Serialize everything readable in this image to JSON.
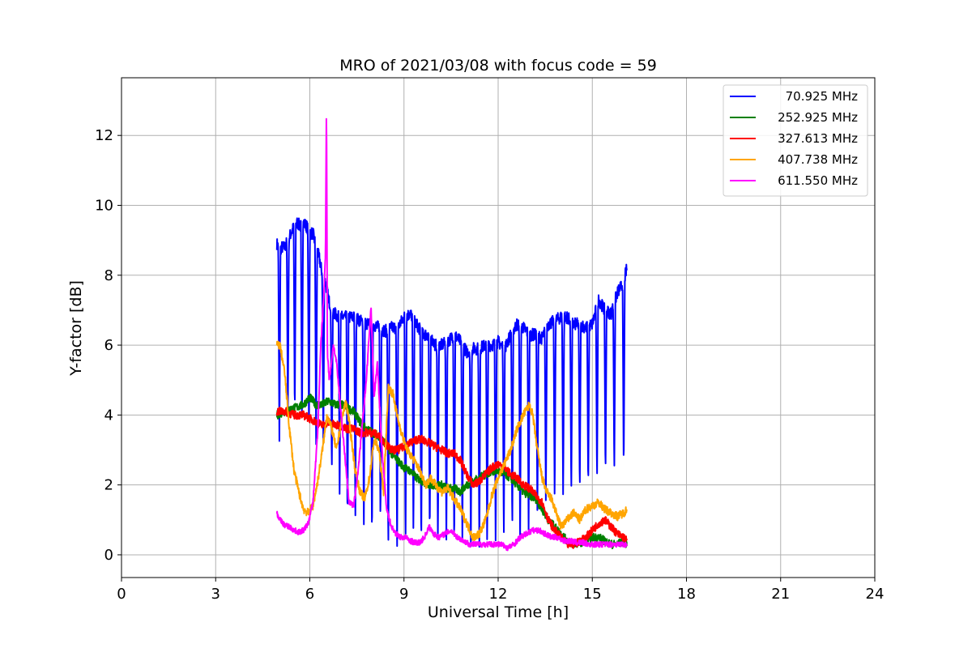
{
  "chart_data": {
    "type": "line",
    "title": "MRO of 2021/03/08 with focus code = 59",
    "xlabel": "Universal Time [h]",
    "ylabel": "Y-factor [dB]",
    "xlim": [
      0,
      24
    ],
    "ylim": [
      -0.65,
      13.65
    ],
    "xticks": [
      0,
      3,
      6,
      9,
      12,
      15,
      18,
      21,
      24
    ],
    "yticks": [
      0,
      2,
      4,
      6,
      8,
      10,
      12
    ],
    "grid": true,
    "legend_position": "top-right",
    "series": [
      {
        "name": "70.925 MHz",
        "color": "#0000ff",
        "x": [
          4.95,
          5.05,
          5.1,
          5.2,
          5.3,
          5.4,
          5.5,
          5.6,
          5.7,
          5.8,
          5.9,
          6.0,
          6.1,
          6.2,
          6.3,
          6.4,
          6.5,
          6.6,
          6.7,
          6.8,
          6.9,
          7.0,
          7.2,
          7.4,
          7.6,
          7.8,
          8.0,
          8.2,
          8.4,
          8.6,
          8.8,
          9.0,
          9.2,
          9.4,
          9.6,
          9.8,
          10.0,
          10.2,
          10.4,
          10.6,
          10.8,
          11.0,
          11.2,
          11.4,
          11.6,
          11.8,
          12.0,
          12.2,
          12.4,
          12.6,
          12.8,
          13.0,
          13.2,
          13.4,
          13.6,
          13.8,
          14.0,
          14.2,
          14.4,
          14.6,
          14.8,
          15.0,
          15.2,
          15.4,
          15.6,
          15.8,
          16.0,
          16.1
        ],
        "values": [
          8.9,
          8.7,
          8.8,
          8.8,
          9.0,
          9.2,
          9.4,
          9.5,
          9.4,
          9.5,
          9.4,
          9.2,
          9.2,
          8.8,
          8.5,
          8.0,
          7.8,
          7.3,
          7.0,
          6.9,
          6.8,
          6.8,
          6.8,
          6.8,
          6.7,
          6.6,
          6.6,
          6.5,
          6.4,
          6.5,
          6.5,
          6.8,
          6.9,
          6.6,
          6.3,
          6.3,
          6.0,
          6.0,
          6.1,
          6.3,
          6.1,
          5.8,
          5.9,
          5.9,
          6.0,
          6.0,
          6.1,
          5.9,
          6.3,
          6.6,
          6.5,
          6.3,
          6.3,
          6.2,
          6.6,
          6.7,
          6.8,
          6.8,
          6.6,
          6.6,
          6.5,
          6.6,
          7.3,
          7.0,
          6.9,
          7.5,
          7.8,
          8.2
        ],
        "dips": [
          [
            5.03,
            3.2
          ],
          [
            5.3,
            4.0
          ],
          [
            5.52,
            3.9
          ],
          [
            5.75,
            3.5
          ],
          [
            5.97,
            3.8
          ],
          [
            6.2,
            3.1
          ],
          [
            6.43,
            3.0
          ],
          [
            6.7,
            2.3
          ],
          [
            6.95,
            1.6
          ],
          [
            7.2,
            0.8
          ],
          [
            7.45,
            1.0
          ],
          [
            7.72,
            0.6
          ],
          [
            7.98,
            0.3
          ],
          [
            8.25,
            0.8
          ],
          [
            8.5,
            0.05
          ],
          [
            8.78,
            0.1
          ],
          [
            9.05,
            0.3
          ],
          [
            9.3,
            0.5
          ],
          [
            9.55,
            0.1
          ],
          [
            9.82,
            0.4
          ],
          [
            10.08,
            0.3
          ],
          [
            10.35,
            0.4
          ],
          [
            10.6,
            0.05
          ],
          [
            10.86,
            0.3
          ],
          [
            11.13,
            0.2
          ],
          [
            11.4,
            0.05
          ],
          [
            11.65,
            0.1
          ],
          [
            11.92,
            0.2
          ],
          [
            12.18,
            0.4
          ],
          [
            12.45,
            0.6
          ],
          [
            12.7,
            0.3
          ],
          [
            12.97,
            0.7
          ],
          [
            13.25,
            1.1
          ],
          [
            13.52,
            1.5
          ],
          [
            13.8,
            1.5
          ],
          [
            14.07,
            1.6
          ],
          [
            14.33,
            1.7
          ],
          [
            14.6,
            1.7
          ],
          [
            14.87,
            1.8
          ],
          [
            15.15,
            2.0
          ],
          [
            15.42,
            2.2
          ],
          [
            15.7,
            2.3
          ],
          [
            16.0,
            2.3
          ]
        ]
      },
      {
        "name": "252.925 MHz",
        "color": "#008000",
        "x": [
          4.95,
          5.2,
          5.5,
          5.8,
          6.0,
          6.2,
          6.4,
          6.6,
          6.8,
          7.0,
          7.2,
          7.4,
          7.6,
          7.8,
          8.0,
          8.2,
          8.4,
          8.6,
          8.8,
          9.0,
          9.2,
          9.4,
          9.6,
          9.8,
          10.0,
          10.2,
          10.4,
          10.6,
          10.8,
          11.0,
          11.2,
          11.4,
          11.6,
          11.8,
          12.0,
          12.2,
          12.4,
          12.6,
          12.8,
          13.0,
          13.2,
          13.4,
          13.6,
          13.8,
          14.0,
          14.2,
          14.4,
          14.6,
          14.8,
          15.0,
          15.2,
          15.4,
          15.6,
          15.8,
          16.0,
          16.1
        ],
        "values": [
          4.0,
          4.1,
          4.2,
          4.3,
          4.5,
          4.3,
          4.3,
          4.4,
          4.3,
          4.3,
          4.2,
          4.1,
          3.8,
          3.6,
          3.5,
          3.4,
          3.2,
          2.9,
          2.7,
          2.5,
          2.4,
          2.2,
          2.1,
          2.0,
          2.0,
          2.0,
          1.9,
          1.9,
          1.8,
          2.0,
          2.1,
          2.2,
          2.3,
          2.4,
          2.4,
          2.3,
          2.2,
          2.0,
          1.8,
          1.7,
          1.6,
          1.3,
          1.0,
          0.8,
          0.6,
          0.4,
          0.3,
          0.35,
          0.4,
          0.5,
          0.5,
          0.4,
          0.3,
          0.3,
          0.4,
          0.3
        ]
      },
      {
        "name": "327.613 MHz",
        "color": "#ff0000",
        "x": [
          4.95,
          5.2,
          5.5,
          5.8,
          6.0,
          6.2,
          6.4,
          6.6,
          6.8,
          7.0,
          7.2,
          7.4,
          7.6,
          7.8,
          8.0,
          8.2,
          8.4,
          8.6,
          8.8,
          9.0,
          9.2,
          9.4,
          9.6,
          9.8,
          10.0,
          10.2,
          10.4,
          10.6,
          10.8,
          11.0,
          11.2,
          11.4,
          11.6,
          11.8,
          12.0,
          12.2,
          12.4,
          12.6,
          12.8,
          13.0,
          13.2,
          13.4,
          13.6,
          13.8,
          14.0,
          14.2,
          14.4,
          14.6,
          14.8,
          15.0,
          15.2,
          15.4,
          15.6,
          15.8,
          16.0,
          16.1
        ],
        "values": [
          4.1,
          4.1,
          4.0,
          4.0,
          3.9,
          3.8,
          3.7,
          3.8,
          3.7,
          3.7,
          3.6,
          3.6,
          3.5,
          3.5,
          3.5,
          3.4,
          3.2,
          3.0,
          3.0,
          3.1,
          3.2,
          3.3,
          3.3,
          3.2,
          3.1,
          3.0,
          2.9,
          2.9,
          2.7,
          2.3,
          2.0,
          2.1,
          2.3,
          2.5,
          2.6,
          2.5,
          2.3,
          2.2,
          2.0,
          1.9,
          1.7,
          1.5,
          1.0,
          0.7,
          0.5,
          0.3,
          0.3,
          0.4,
          0.5,
          0.7,
          0.9,
          1.0,
          0.8,
          0.6,
          0.5,
          0.4
        ]
      },
      {
        "name": "407.738 MHz",
        "color": "#ffa500",
        "x": [
          4.95,
          5.05,
          5.2,
          5.35,
          5.5,
          5.65,
          5.8,
          5.95,
          6.1,
          6.25,
          6.4,
          6.55,
          6.7,
          6.85,
          7.0,
          7.15,
          7.3,
          7.45,
          7.6,
          7.75,
          7.9,
          8.05,
          8.2,
          8.35,
          8.5,
          8.65,
          8.8,
          8.95,
          9.1,
          9.25,
          9.4,
          9.55,
          9.7,
          9.85,
          10.0,
          10.2,
          10.4,
          10.6,
          10.8,
          11.0,
          11.2,
          11.4,
          11.6,
          11.8,
          12.0,
          12.2,
          12.4,
          12.6,
          12.8,
          13.0,
          13.1,
          13.25,
          13.4,
          13.55,
          13.7,
          13.85,
          14.0,
          14.2,
          14.4,
          14.6,
          14.8,
          15.0,
          15.2,
          15.4,
          15.6,
          15.8,
          16.0,
          16.1
        ],
        "values": [
          6.0,
          6.0,
          5.2,
          3.6,
          2.4,
          1.8,
          1.3,
          1.2,
          1.4,
          2.1,
          3.0,
          4.0,
          3.6,
          3.0,
          3.8,
          4.4,
          3.5,
          2.4,
          1.8,
          1.6,
          2.2,
          3.3,
          3.0,
          1.8,
          4.8,
          4.6,
          3.9,
          3.4,
          3.0,
          2.8,
          2.6,
          2.3,
          2.0,
          2.2,
          2.0,
          1.8,
          1.9,
          1.6,
          1.3,
          0.9,
          0.5,
          0.6,
          1.0,
          1.7,
          2.2,
          2.6,
          3.0,
          3.6,
          4.0,
          4.3,
          4.0,
          3.0,
          2.2,
          1.8,
          1.6,
          1.2,
          0.8,
          1.0,
          1.2,
          1.0,
          1.3,
          1.4,
          1.5,
          1.3,
          1.2,
          1.1,
          1.2,
          1.3
        ]
      },
      {
        "name": "611.550 MHz",
        "color": "#ff00ff",
        "x": [
          4.95,
          5.05,
          5.2,
          5.35,
          5.5,
          5.65,
          5.8,
          5.95,
          6.1,
          6.25,
          6.35,
          6.45,
          6.5,
          6.53,
          6.56,
          6.62,
          6.75,
          6.85,
          7.0,
          7.1,
          7.25,
          7.4,
          7.55,
          7.7,
          7.8,
          7.95,
          8.05,
          8.15,
          8.3,
          8.45,
          8.6,
          8.75,
          8.9,
          9.05,
          9.2,
          9.35,
          9.5,
          9.65,
          9.8,
          9.95,
          10.1,
          10.3,
          10.5,
          10.7,
          10.9,
          11.1,
          11.3,
          11.5,
          11.7,
          11.9,
          12.1,
          12.3,
          12.5,
          12.7,
          12.9,
          13.1,
          13.3,
          13.5,
          13.7,
          13.9,
          14.1,
          14.3,
          14.5,
          14.7,
          14.9,
          15.1,
          15.3,
          15.5,
          15.7,
          15.9,
          16.1
        ],
        "values": [
          1.2,
          1.0,
          0.85,
          0.8,
          0.7,
          0.65,
          0.7,
          0.9,
          1.5,
          3.5,
          6.0,
          7.5,
          8.6,
          13.0,
          5.8,
          5.0,
          6.0,
          5.5,
          4.0,
          3.0,
          1.5,
          1.4,
          2.5,
          4.0,
          5.0,
          7.1,
          4.5,
          5.5,
          3.0,
          1.3,
          0.8,
          0.6,
          0.5,
          0.5,
          0.4,
          0.35,
          0.35,
          0.5,
          0.8,
          0.6,
          0.5,
          0.6,
          0.7,
          0.5,
          0.4,
          0.3,
          0.3,
          0.3,
          0.3,
          0.3,
          0.3,
          0.2,
          0.3,
          0.5,
          0.6,
          0.7,
          0.7,
          0.6,
          0.5,
          0.5,
          0.4,
          0.4,
          0.35,
          0.35,
          0.3,
          0.3,
          0.3,
          0.3,
          0.3,
          0.3,
          0.3
        ]
      }
    ]
  }
}
